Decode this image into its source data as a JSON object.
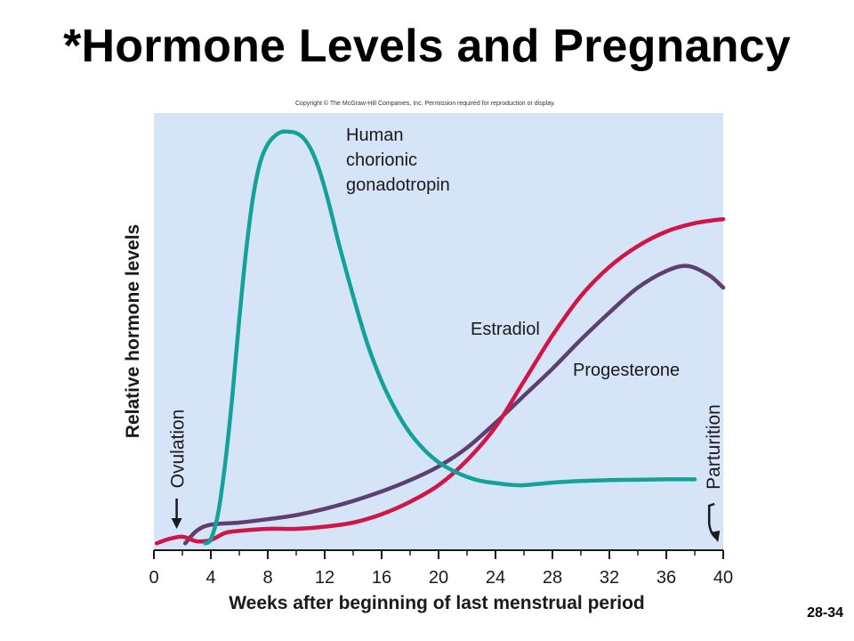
{
  "slide": {
    "title": "*Hormone Levels and Pregnancy",
    "copyright": "Copyright © The McGraw-Hill Companies, Inc. Permission required for reproduction or display.",
    "slide_number": "28-34"
  },
  "colors": {
    "plot_background": "#d5e4f7",
    "hcg": "#12a29a",
    "estradiol": "#cf1647",
    "progesterone": "#5e3f70",
    "axis": "#1a1a1a"
  },
  "chart_data": {
    "type": "line",
    "title": "",
    "xlabel": "Weeks after beginning of last menstrual period",
    "ylabel": "Relative hormone levels",
    "xlim": [
      0,
      40
    ],
    "ylim": [
      0,
      100
    ],
    "xticks": [
      0,
      4,
      8,
      12,
      16,
      20,
      24,
      28,
      32,
      36,
      40
    ],
    "grid": false,
    "series": [
      {
        "key": "hcg",
        "name_lines": [
          "Human",
          "chorionic",
          "gonadotropin"
        ],
        "x": [
          3.6,
          4.0,
          4.5,
          5.0,
          5.5,
          6.0,
          6.5,
          7.0,
          7.5,
          8.0,
          8.5,
          9.0,
          9.5,
          10.0,
          10.5,
          11.0,
          11.5,
          12.0,
          12.5,
          13.0,
          14.0,
          15.0,
          16.0,
          17.0,
          18.0,
          19.0,
          20.0,
          21.0,
          22.0,
          23.0,
          24.0,
          25.0,
          26.0,
          28.0,
          30.0,
          32.0,
          34.0,
          36.0,
          38.0
        ],
        "y": [
          1,
          2,
          8,
          20,
          36,
          55,
          72,
          85,
          93,
          97,
          99,
          100,
          100,
          99.7,
          98.5,
          96,
          92,
          86.5,
          80,
          73,
          60.5,
          49,
          40,
          33,
          27.5,
          23.5,
          20.5,
          18.5,
          17,
          16,
          15.5,
          15.1,
          15,
          15.6,
          16,
          16.2,
          16.3,
          16.4,
          16.4
        ]
      },
      {
        "key": "estradiol",
        "name_lines": [
          "Estradiol"
        ],
        "x": [
          0.2,
          1.0,
          2.0,
          3.0,
          4.0,
          5.0,
          6.0,
          8.0,
          10.0,
          12.0,
          14.0,
          16.0,
          18.0,
          20.0,
          22.0,
          24.0,
          26.0,
          28.0,
          30.0,
          32.0,
          34.0,
          36.0,
          38.0,
          40.0
        ],
        "y": [
          1,
          2,
          2.6,
          1.5,
          1.8,
          3.5,
          4,
          4.5,
          4.5,
          5,
          6,
          8,
          11,
          15,
          21,
          29,
          40,
          51,
          60.5,
          67.5,
          72.5,
          76,
          78,
          79
        ]
      },
      {
        "key": "progesterone",
        "name_lines": [
          "Progesterone"
        ],
        "x": [
          2.2,
          3.0,
          4.0,
          6.0,
          8.0,
          10.0,
          12.0,
          14.0,
          16.0,
          18.0,
          20.0,
          22.0,
          24.0,
          26.0,
          28.0,
          30.0,
          32.0,
          34.0,
          36.0,
          37.5,
          39.0,
          40.0
        ],
        "y": [
          1,
          4,
          5.5,
          6,
          6.8,
          7.8,
          9.3,
          11.2,
          13.5,
          16.2,
          19.5,
          24,
          30,
          36.5,
          43,
          50,
          56.5,
          62.5,
          66.5,
          67.7,
          65.5,
          62.5
        ]
      }
    ],
    "annotations": [
      {
        "key": "ovulation",
        "label": "Ovulation",
        "x": 1.6
      },
      {
        "key": "parturition",
        "label": "Parturition",
        "x": 39.2
      }
    ]
  }
}
